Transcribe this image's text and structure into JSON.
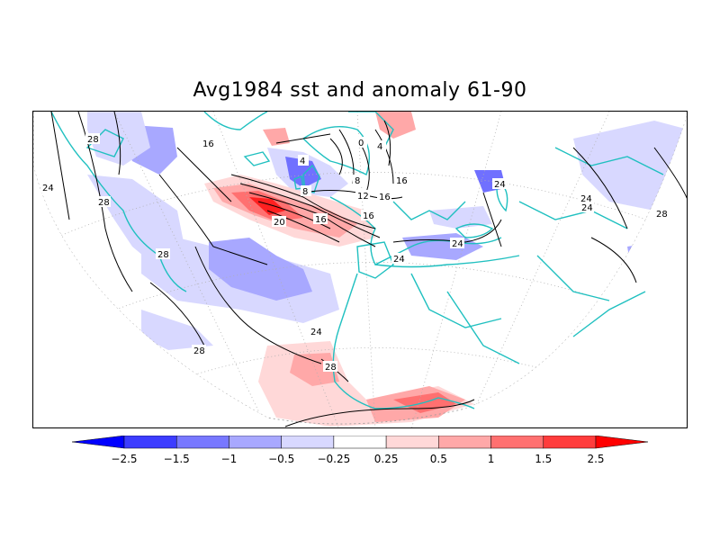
{
  "title": "Avg1984 sst and anomaly 61-90",
  "colors": {
    "land_outline": "#20c0c0",
    "contour": "#000000",
    "neg_strong": "#2020ff",
    "neg_mid": "#7070ff",
    "neg_light": "#a8a8ff",
    "neg_faint": "#d8d8ff",
    "pos_faint": "#ffd8d8",
    "pos_light": "#ffa8a8",
    "pos_mid": "#ff7070",
    "pos_strong": "#ff2020"
  },
  "colorbar": {
    "colors": [
      "#0000ff",
      "#3c3cff",
      "#7878ff",
      "#a8a8ff",
      "#d8d8ff",
      "#ffffff",
      "#ffd8d8",
      "#ffa8a8",
      "#ff7070",
      "#ff3c3c",
      "#ff0000"
    ],
    "labels": [
      "−2.5",
      "−1.5",
      "−1",
      "−0.5",
      "−0.25",
      "0.25",
      "0.5",
      "1",
      "1.5",
      "2.5"
    ]
  },
  "contour_labels": [
    "28",
    "24",
    "28",
    "28",
    "28",
    "16",
    "24",
    "4",
    "0",
    "4",
    "8",
    "8",
    "12",
    "16",
    "16",
    "16",
    "20",
    "16",
    "24",
    "24",
    "24",
    "24",
    "28",
    "24",
    "28"
  ]
}
